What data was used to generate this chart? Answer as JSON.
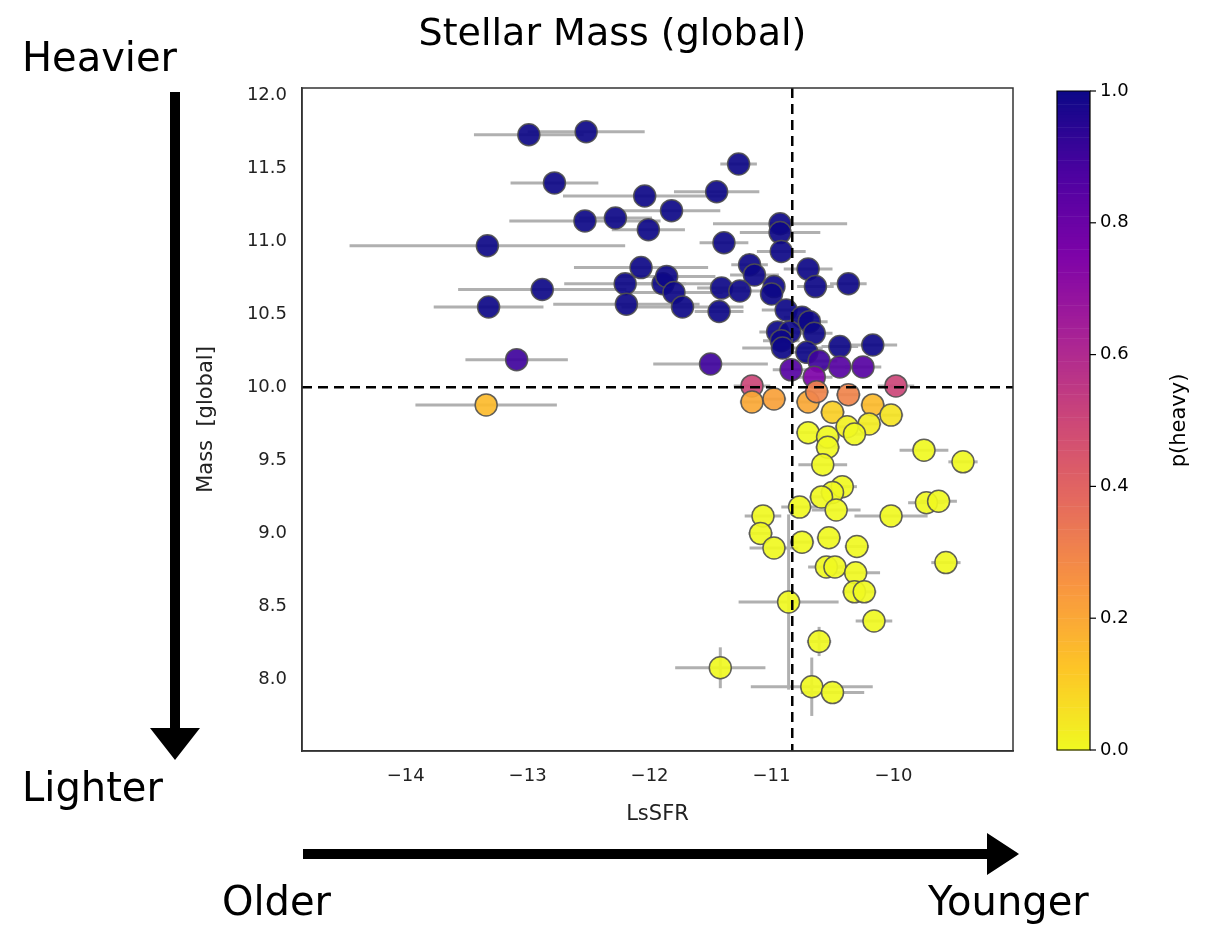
{
  "chart_data": {
    "type": "scatter",
    "title": "Stellar Mass (global)",
    "xlabel": "LsSFR",
    "ylabel": "Mass  [global]",
    "clabel": "p(heavy)",
    "annotations": [
      "Heavier",
      "Lighter",
      "Older",
      "Younger"
    ],
    "x": [
      -12.99,
      -12.52,
      -12.78,
      -12.04,
      -12.53,
      -12.28,
      -12.01,
      -13.33,
      -12.07,
      -12.2,
      -11.89,
      -12.88,
      -13.32,
      -12.19,
      -13.09,
      -13.34,
      -11.27,
      -11.45,
      -11.82,
      -10.93,
      -10.93,
      -10.92,
      -11.39,
      -11.18,
      -11.14,
      -10.7,
      -11.86,
      -10.64,
      -10.37,
      -11.41,
      -11.26,
      -11.8,
      -11.73,
      -11.43,
      -10.98,
      -11.0,
      -10.88,
      -10.75,
      -10.69,
      -10.95,
      -10.85,
      -10.65,
      -10.92,
      -10.91,
      -10.71,
      -10.44,
      -10.17,
      -11.5,
      -10.84,
      -10.61,
      -10.44,
      -10.25,
      -10.65,
      -11.16,
      -9.98,
      -11.16,
      -10.98,
      -10.7,
      -10.63,
      -10.37,
      -10.17,
      -10.5,
      -10.02,
      -10.2,
      -10.38,
      -10.32,
      -10.7,
      -10.54,
      -10.54,
      -9.75,
      -9.43,
      -10.58,
      -10.42,
      -10.5,
      -10.59,
      -10.77,
      -10.47,
      -9.73,
      -9.63,
      -10.02,
      -11.07,
      -11.09,
      -10.98,
      -10.75,
      -10.53,
      -10.3,
      -10.55,
      -10.48,
      -10.31,
      -10.32,
      -10.24,
      -9.57,
      -10.86,
      -10.16,
      -10.61,
      -11.42,
      -10.67,
      -10.5
    ],
    "values": [
      11.73,
      11.75,
      11.4,
      11.31,
      11.14,
      11.16,
      11.08,
      10.97,
      10.82,
      10.71,
      10.71,
      10.67,
      10.55,
      10.57,
      10.19,
      9.88,
      11.53,
      11.34,
      11.21,
      11.12,
      11.06,
      10.93,
      10.99,
      10.84,
      10.77,
      10.81,
      10.76,
      10.69,
      10.71,
      10.68,
      10.66,
      10.65,
      10.55,
      10.52,
      10.69,
      10.64,
      10.53,
      10.48,
      10.45,
      10.38,
      10.38,
      10.37,
      10.32,
      10.27,
      10.24,
      10.28,
      10.29,
      10.16,
      10.12,
      10.18,
      10.14,
      10.14,
      10.07,
      10.01,
      10.01,
      9.9,
      9.92,
      9.9,
      9.97,
      9.95,
      9.88,
      9.83,
      9.81,
      9.75,
      9.73,
      9.68,
      9.69,
      9.66,
      9.59,
      9.57,
      9.49,
      9.47,
      9.32,
      9.28,
      9.25,
      9.18,
      9.16,
      9.21,
      9.22,
      9.12,
      9.12,
      9.0,
      8.9,
      8.94,
      8.97,
      8.91,
      8.77,
      8.77,
      8.73,
      8.6,
      8.6,
      8.8,
      8.53,
      8.4,
      8.26,
      8.08,
      7.95,
      7.91
    ],
    "xerrors": [
      0.45,
      0.48,
      0.36,
      0.67,
      0.62,
      0.3,
      0.3,
      1.13,
      0.55,
      0.5,
      0.4,
      0.69,
      0.45,
      0.6,
      0.42,
      0.58,
      0.15,
      0.35,
      0.4,
      0.55,
      0.33,
      0.2,
      0.2,
      0.15,
      0.2,
      0.2,
      0.4,
      0.15,
      0.15,
      0.2,
      0.2,
      0.4,
      0.5,
      0.2,
      null,
      null,
      0.2,
      0.15,
      0.15,
      0.15,
      0.15,
      0.15,
      0.15,
      0.33,
      0.15,
      0.15,
      0.2,
      0.47,
      0.15,
      0.15,
      0.15,
      0.15,
      0.15,
      0.15,
      0.15,
      0.1,
      0.1,
      0.1,
      0.1,
      0.1,
      0.1,
      0.1,
      0.1,
      0.1,
      0.1,
      0.1,
      0.1,
      0.1,
      0.1,
      0.2,
      0.12,
      0.2,
      0.12,
      0.1,
      0.1,
      0.15,
      0.2,
      0.15,
      0.15,
      0.3,
      0.15,
      0.1,
      0.2,
      0.1,
      0.1,
      0.1,
      0.15,
      0.1,
      0.2,
      0.1,
      0.1,
      0.12,
      0.41,
      0.15,
      0.1,
      0.37,
      0.5,
      0.26
    ],
    "errors": [
      null,
      null,
      null,
      null,
      null,
      null,
      null,
      null,
      null,
      null,
      null,
      null,
      null,
      null,
      null,
      null,
      null,
      null,
      null,
      null,
      null,
      null,
      null,
      null,
      null,
      null,
      null,
      null,
      null,
      null,
      null,
      null,
      null,
      null,
      null,
      null,
      null,
      null,
      null,
      null,
      null,
      null,
      null,
      null,
      null,
      null,
      null,
      null,
      null,
      null,
      null,
      null,
      null,
      null,
      null,
      null,
      null,
      null,
      null,
      null,
      null,
      null,
      null,
      null,
      null,
      null,
      null,
      null,
      null,
      null,
      null,
      null,
      null,
      null,
      null,
      null,
      null,
      null,
      null,
      null,
      null,
      null,
      null,
      null,
      null,
      null,
      null,
      null,
      null,
      null,
      null,
      null,
      0.6,
      null,
      0.1,
      0.14,
      0.2,
      null
    ],
    "cvalues": [
      1,
      1,
      1,
      1,
      1,
      1,
      1,
      1,
      1,
      1,
      1,
      1,
      1,
      1,
      0.9,
      0.15,
      1,
      1,
      1,
      1,
      1,
      1,
      1,
      1,
      1,
      1,
      1,
      1,
      1,
      1,
      1,
      1,
      1,
      1,
      1,
      1,
      1,
      1,
      1,
      1,
      1,
      1,
      1,
      1,
      1,
      1,
      1,
      0.9,
      0.85,
      0.9,
      0.85,
      0.85,
      0.75,
      0.5,
      0.5,
      0.2,
      0.22,
      0.2,
      0.3,
      0.3,
      0.15,
      0.1,
      0.05,
      0.03,
      0.02,
      0,
      0,
      0,
      0,
      0,
      0,
      0,
      0,
      0,
      0,
      0,
      0,
      0,
      0,
      0,
      0,
      0,
      0,
      0,
      0,
      0,
      0,
      0,
      0,
      0,
      0,
      0,
      0,
      0,
      0,
      0,
      0,
      0
    ],
    "clim": [
      0,
      1
    ],
    "cticks": [
      {
        "value": 0,
        "label": "0.0"
      },
      {
        "value": 0.2,
        "label": "0.2"
      },
      {
        "value": 0.4,
        "label": "0.4"
      },
      {
        "value": 0.6,
        "label": "0.6"
      },
      {
        "value": 0.8,
        "label": "0.8"
      },
      {
        "value": 1,
        "label": "1.0"
      }
    ],
    "xlim": [
      -14.85,
      -9.02
    ],
    "xticks": [
      {
        "value": -14,
        "label": "−14"
      },
      {
        "value": -13,
        "label": "−13"
      },
      {
        "value": -12,
        "label": "−12"
      },
      {
        "value": -11,
        "label": "−11"
      },
      {
        "value": -10,
        "label": "−10"
      }
    ],
    "ylim": [
      7.51,
      12.05
    ],
    "yticks": [
      {
        "value": 8,
        "label": "8.0"
      },
      {
        "value": 8.5,
        "label": "8.5"
      },
      {
        "value": 9,
        "label": "9.0"
      },
      {
        "value": 9.5,
        "label": "9.5"
      },
      {
        "value": 10,
        "label": "10.0"
      },
      {
        "value": 10.5,
        "label": "10.5"
      },
      {
        "value": 11,
        "label": "11.0"
      },
      {
        "value": 11.5,
        "label": "11.5"
      },
      {
        "value": 12,
        "label": "12.0"
      }
    ],
    "ref_lines": [
      {
        "axis": "x",
        "value": -10.83,
        "color": "#000000",
        "line_style": "dashed"
      },
      {
        "axis": "y",
        "value": 10,
        "color": "#000000",
        "line_style": "dashed"
      }
    ],
    "marker": "circle",
    "grid": false,
    "legend": false
  }
}
